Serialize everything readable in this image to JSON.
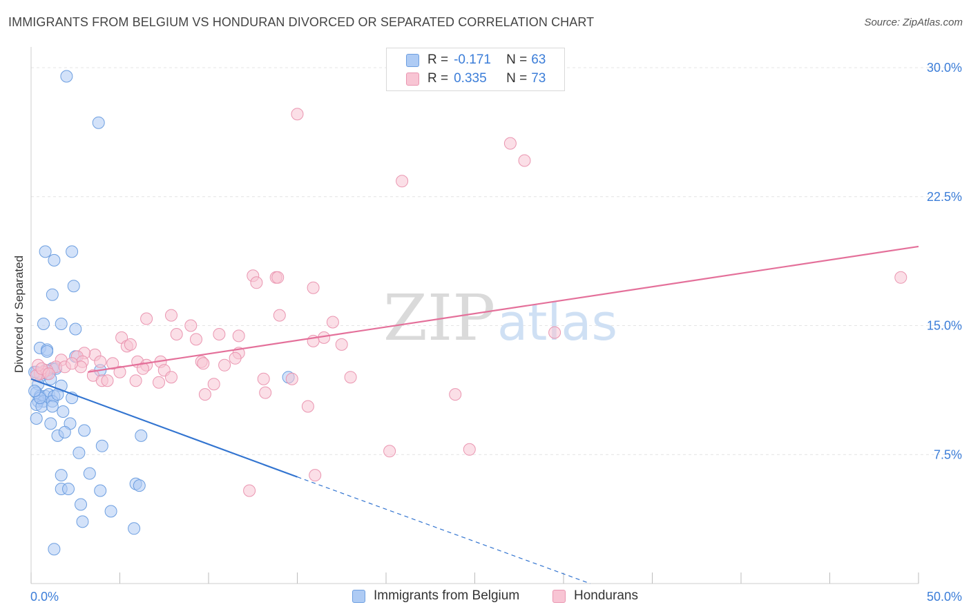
{
  "header": {
    "title": "IMMIGRANTS FROM BELGIUM VS HONDURAN DIVORCED OR SEPARATED CORRELATION CHART",
    "source": "Source: ZipAtlas.com"
  },
  "watermark": {
    "zip": "ZIP",
    "atlas": "atlas"
  },
  "legend": {
    "rows": [
      {
        "r_label": "R =",
        "r_value": "-0.171",
        "n_label": "N =",
        "n_value": "63",
        "fill": "#aecbf4",
        "stroke": "#6c9ee0"
      },
      {
        "r_label": "R =",
        "r_value": "0.335",
        "n_label": "N =",
        "n_value": "73",
        "fill": "#f8c5d4",
        "stroke": "#ea95b0"
      }
    ]
  },
  "bottom_legend": {
    "items": [
      {
        "label": "Immigrants from Belgium",
        "fill": "#aecbf4",
        "stroke": "#6c9ee0"
      },
      {
        "label": "Hondurans",
        "fill": "#f8c5d4",
        "stroke": "#ea95b0"
      }
    ]
  },
  "chart_data": {
    "type": "scatter",
    "title": "IMMIGRANTS FROM BELGIUM VS HONDURAN DIVORCED OR SEPARATED CORRELATION CHART",
    "xlabel": "",
    "ylabel": "Divorced or Separated",
    "xlim": [
      0,
      50
    ],
    "ylim": [
      0,
      30.5
    ],
    "x_tick_labels": [
      "0.0%",
      "50.0%"
    ],
    "y_ticks": [
      7.5,
      15.0,
      22.5,
      30.0
    ],
    "y_tick_labels": [
      "7.5%",
      "15.0%",
      "22.5%",
      "30.0%"
    ],
    "x_tick_marks": [
      0,
      5,
      10,
      15,
      20,
      25,
      30,
      35,
      40,
      45,
      50
    ],
    "grid": true,
    "colors": {
      "belgium_fill": "#aecbf4",
      "belgium_stroke": "#6c9ee0",
      "belgium_line": "#3274d0",
      "honduran_fill": "#f8c5d4",
      "honduran_stroke": "#ea95b0",
      "honduran_line": "#e4709a",
      "tick_label": "#3b7dd8",
      "grid": "#e4e4e4"
    },
    "series": [
      {
        "name": "Immigrants from Belgium",
        "r": -0.171,
        "n": 63,
        "trend": {
          "x_start": 0,
          "y_start": 11.9,
          "x_solid_end": 15,
          "y_solid_end": 6.2,
          "x_dash_end": 31.5,
          "y_dash_end": 0
        },
        "points": [
          [
            2.0,
            29.5
          ],
          [
            3.8,
            26.8
          ],
          [
            0.8,
            19.3
          ],
          [
            2.3,
            19.3
          ],
          [
            1.3,
            18.8
          ],
          [
            2.4,
            17.3
          ],
          [
            1.2,
            16.8
          ],
          [
            0.7,
            15.1
          ],
          [
            1.7,
            15.1
          ],
          [
            2.5,
            14.8
          ],
          [
            0.5,
            13.7
          ],
          [
            0.9,
            13.6
          ],
          [
            0.9,
            13.5
          ],
          [
            1.2,
            12.5
          ],
          [
            1.4,
            12.5
          ],
          [
            3.9,
            12.4
          ],
          [
            2.5,
            13.2
          ],
          [
            0.3,
            12.3
          ],
          [
            0.6,
            12.1
          ],
          [
            0.9,
            12.2
          ],
          [
            0.4,
            11.6
          ],
          [
            1.7,
            11.5
          ],
          [
            0.3,
            11.1
          ],
          [
            0.5,
            10.9
          ],
          [
            0.8,
            10.9
          ],
          [
            1.0,
            11.0
          ],
          [
            1.3,
            10.9
          ],
          [
            0.4,
            10.6
          ],
          [
            0.7,
            10.6
          ],
          [
            1.2,
            10.6
          ],
          [
            0.3,
            10.4
          ],
          [
            0.6,
            10.3
          ],
          [
            1.2,
            10.3
          ],
          [
            1.8,
            10.0
          ],
          [
            0.3,
            9.6
          ],
          [
            1.1,
            9.3
          ],
          [
            2.2,
            9.3
          ],
          [
            3.0,
            8.9
          ],
          [
            1.5,
            8.6
          ],
          [
            1.9,
            8.8
          ],
          [
            6.2,
            8.6
          ],
          [
            4.0,
            8.0
          ],
          [
            2.7,
            7.6
          ],
          [
            1.7,
            6.3
          ],
          [
            3.3,
            6.4
          ],
          [
            5.9,
            5.8
          ],
          [
            6.1,
            5.7
          ],
          [
            1.7,
            5.5
          ],
          [
            2.1,
            5.5
          ],
          [
            3.9,
            5.4
          ],
          [
            2.8,
            4.6
          ],
          [
            4.5,
            4.2
          ],
          [
            2.9,
            3.6
          ],
          [
            5.8,
            3.2
          ],
          [
            1.3,
            2.0
          ],
          [
            14.5,
            12.0
          ],
          [
            0.2,
            12.3
          ],
          [
            0.8,
            12.4
          ],
          [
            1.1,
            11.9
          ],
          [
            0.5,
            10.8
          ],
          [
            2.3,
            10.8
          ],
          [
            1.5,
            11.0
          ],
          [
            0.2,
            11.2
          ]
        ]
      },
      {
        "name": "Hondurans",
        "r": 0.335,
        "n": 73,
        "trend": {
          "x_start": 3.2,
          "y_start": 12.3,
          "x_end": 50,
          "y_end": 19.6
        },
        "points": [
          [
            15.0,
            27.3
          ],
          [
            27.0,
            25.6
          ],
          [
            27.8,
            24.6
          ],
          [
            20.9,
            23.4
          ],
          [
            49.0,
            17.8
          ],
          [
            12.5,
            17.9
          ],
          [
            13.8,
            17.8
          ],
          [
            13.9,
            17.8
          ],
          [
            12.7,
            17.5
          ],
          [
            15.9,
            17.2
          ],
          [
            6.5,
            15.4
          ],
          [
            7.9,
            15.6
          ],
          [
            14.0,
            15.6
          ],
          [
            9.0,
            15.0
          ],
          [
            17.0,
            15.2
          ],
          [
            29.5,
            14.6
          ],
          [
            10.6,
            14.5
          ],
          [
            11.7,
            14.4
          ],
          [
            8.2,
            14.5
          ],
          [
            5.1,
            14.3
          ],
          [
            9.3,
            14.2
          ],
          [
            16.5,
            14.3
          ],
          [
            15.9,
            14.1
          ],
          [
            17.5,
            13.9
          ],
          [
            5.4,
            13.8
          ],
          [
            5.6,
            13.9
          ],
          [
            11.7,
            13.4
          ],
          [
            3.6,
            13.3
          ],
          [
            3.0,
            13.4
          ],
          [
            2.6,
            13.2
          ],
          [
            11.5,
            13.1
          ],
          [
            1.7,
            13.0
          ],
          [
            2.9,
            12.9
          ],
          [
            3.9,
            12.9
          ],
          [
            6.0,
            12.9
          ],
          [
            7.3,
            12.9
          ],
          [
            9.6,
            12.9
          ],
          [
            9.7,
            12.8
          ],
          [
            4.6,
            12.8
          ],
          [
            6.5,
            12.7
          ],
          [
            2.8,
            12.6
          ],
          [
            10.9,
            12.7
          ],
          [
            1.4,
            12.6
          ],
          [
            1.9,
            12.6
          ],
          [
            6.3,
            12.5
          ],
          [
            7.5,
            12.4
          ],
          [
            0.9,
            12.4
          ],
          [
            0.7,
            12.3
          ],
          [
            5.0,
            12.3
          ],
          [
            0.5,
            12.2
          ],
          [
            0.3,
            12.1
          ],
          [
            3.5,
            12.1
          ],
          [
            7.9,
            12.0
          ],
          [
            13.1,
            11.9
          ],
          [
            14.7,
            11.9
          ],
          [
            18.0,
            12.0
          ],
          [
            4.0,
            11.8
          ],
          [
            5.9,
            11.8
          ],
          [
            4.3,
            11.8
          ],
          [
            7.2,
            11.7
          ],
          [
            10.3,
            11.6
          ],
          [
            13.2,
            11.1
          ],
          [
            9.8,
            11.0
          ],
          [
            23.9,
            11.0
          ],
          [
            15.6,
            10.3
          ],
          [
            24.7,
            7.8
          ],
          [
            20.2,
            7.7
          ],
          [
            16.0,
            6.3
          ],
          [
            12.3,
            5.4
          ],
          [
            0.4,
            12.7
          ],
          [
            0.6,
            12.5
          ],
          [
            1.0,
            12.2
          ],
          [
            2.3,
            12.8
          ]
        ]
      }
    ]
  }
}
